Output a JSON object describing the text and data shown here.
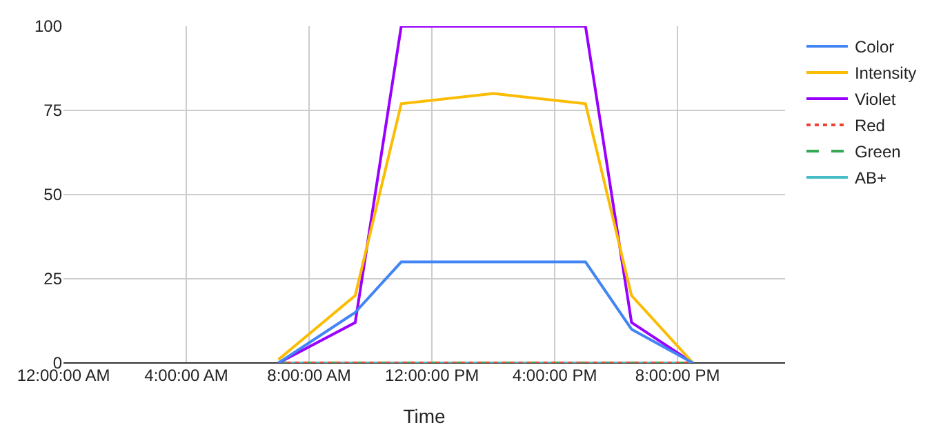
{
  "chart_data": {
    "type": "line",
    "xlabel": "Time",
    "x": [
      7,
      9.5,
      11,
      14,
      17,
      18.5,
      20.5
    ],
    "xlim": [
      0,
      23.5
    ],
    "xticks": [
      {
        "value": 0,
        "label": "12:00:00 AM"
      },
      {
        "value": 4,
        "label": "4:00:00 AM"
      },
      {
        "value": 8,
        "label": "8:00:00 AM"
      },
      {
        "value": 12,
        "label": "12:00:00 PM"
      },
      {
        "value": 16,
        "label": "4:00:00 PM"
      },
      {
        "value": 20,
        "label": "8:00:00 PM"
      }
    ],
    "ylim": [
      0,
      100
    ],
    "yticks": [
      0,
      25,
      50,
      75,
      100
    ],
    "grid": true,
    "legend": "right",
    "marker": "none",
    "series": [
      {
        "name": "Color",
        "color": "#4285f4",
        "values": [
          0,
          15,
          30,
          30,
          30,
          10,
          0
        ]
      },
      {
        "name": "Intensity",
        "color": "#fbbc04",
        "values": [
          1,
          20,
          77,
          80,
          77,
          20,
          0
        ]
      },
      {
        "name": "Violet",
        "color": "#9900ff",
        "values": [
          0,
          12,
          100,
          100,
          100,
          12,
          0
        ]
      },
      {
        "name": "Red",
        "color": "#ea4335",
        "line_style": "dotted",
        "values": [
          0,
          0,
          0,
          0,
          0,
          0,
          0
        ]
      },
      {
        "name": "Green",
        "color": "#34a853",
        "line_style": "dashed",
        "values": [
          0,
          0,
          0,
          0,
          0,
          0,
          0
        ]
      },
      {
        "name": "AB+",
        "color": "#46bdc6",
        "values": [
          0,
          0,
          0,
          0,
          0,
          0,
          0
        ]
      }
    ]
  }
}
